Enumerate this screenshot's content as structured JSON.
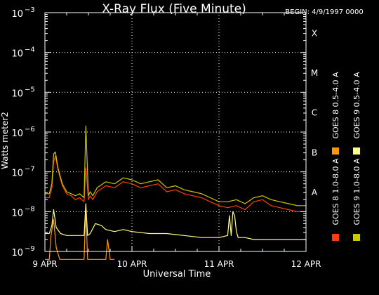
{
  "chart_data": {
    "type": "line",
    "title": "X-Ray Flux (Five Minute)",
    "begin_label": "BEGIN: 4/9/1997 0000",
    "xlabel": "Universal Time",
    "ylabel": "Watts meter2",
    "x_domain_days": [
      9,
      12
    ],
    "x_ticks": [
      {
        "day": 9,
        "label": "9 APR"
      },
      {
        "day": 10,
        "label": "10 APR"
      },
      {
        "day": 11,
        "label": "11 APR"
      },
      {
        "day": 12,
        "label": "12 APR"
      }
    ],
    "ylim_log10": [
      -9,
      -3
    ],
    "y_ticks": [
      {
        "exp": -9,
        "label": "10",
        "sup": "−9"
      },
      {
        "exp": -8,
        "label": "10",
        "sup": "−8"
      },
      {
        "exp": -7,
        "label": "10",
        "sup": "−7"
      },
      {
        "exp": -6,
        "label": "10",
        "sup": "−6"
      },
      {
        "exp": -5,
        "label": "10",
        "sup": "−5"
      },
      {
        "exp": -4,
        "label": "10",
        "sup": "−4"
      },
      {
        "exp": -3,
        "label": "10",
        "sup": "−3"
      }
    ],
    "flare_classes": [
      {
        "label": "A",
        "exp": -8
      },
      {
        "label": "B",
        "exp": -7
      },
      {
        "label": "C",
        "exp": -6
      },
      {
        "label": "M",
        "exp": -5
      },
      {
        "label": "X",
        "exp": -4
      }
    ],
    "grid": "dotted",
    "legend_position": "right",
    "series": [
      {
        "name": "GOES 8 1.0-8.0 A",
        "color": "#ff4000",
        "x": [
          9.0,
          9.05,
          9.08,
          9.1,
          9.12,
          9.15,
          9.2,
          9.25,
          9.3,
          9.35,
          9.4,
          9.45,
          9.47,
          9.5,
          9.52,
          9.55,
          9.6,
          9.7,
          9.8,
          9.9,
          10.0,
          10.1,
          10.2,
          10.3,
          10.4,
          10.5,
          10.6,
          10.7,
          10.8,
          10.9,
          11.0,
          11.1,
          11.2,
          11.3,
          11.4,
          11.5,
          11.6,
          11.7,
          11.8,
          11.9,
          12.0
        ],
        "log10_y": [
          -7.65,
          -7.65,
          -7.4,
          -6.75,
          -6.6,
          -6.95,
          -7.35,
          -7.55,
          -7.6,
          -7.7,
          -7.65,
          -7.75,
          -6.9,
          -7.7,
          -7.6,
          -7.7,
          -7.5,
          -7.35,
          -7.4,
          -7.25,
          -7.3,
          -7.4,
          -7.35,
          -7.3,
          -7.5,
          -7.45,
          -7.55,
          -7.6,
          -7.65,
          -7.75,
          -7.85,
          -7.9,
          -7.85,
          -7.95,
          -7.75,
          -7.7,
          -7.85,
          -7.9,
          -7.95,
          -8.0,
          -8.0
        ]
      },
      {
        "name": "GOES 8 0.5-4.0 A",
        "color": "#ff9600",
        "x": [
          9.0,
          9.05,
          9.07,
          9.1,
          9.13,
          9.17,
          9.2,
          9.25,
          9.3,
          9.35,
          9.45,
          9.47,
          9.49,
          9.52,
          9.6,
          9.7,
          9.72,
          9.75,
          9.8
        ],
        "log10_y": [
          -9.2,
          -9.2,
          -8.6,
          -8.2,
          -8.9,
          -9.2,
          -9.2,
          -9.2,
          -9.2,
          -9.2,
          -9.2,
          -7.9,
          -9.2,
          -9.2,
          -9.2,
          -9.2,
          -8.7,
          -9.2,
          -9.2
        ]
      },
      {
        "name": "GOES 9 1.0-8.0 A",
        "color": "#c8c800",
        "x": [
          9.0,
          9.05,
          9.08,
          9.1,
          9.12,
          9.15,
          9.2,
          9.25,
          9.3,
          9.35,
          9.4,
          9.45,
          9.47,
          9.5,
          9.52,
          9.55,
          9.6,
          9.7,
          9.8,
          9.9,
          10.0,
          10.1,
          10.2,
          10.3,
          10.4,
          10.5,
          10.6,
          10.7,
          10.8,
          10.9,
          11.0,
          11.1,
          11.2,
          11.3,
          11.4,
          11.5,
          11.6,
          11.7,
          11.8,
          11.9,
          12.0
        ],
        "log10_y": [
          -7.55,
          -7.55,
          -7.3,
          -6.55,
          -6.5,
          -6.9,
          -7.3,
          -7.5,
          -7.55,
          -7.6,
          -7.55,
          -7.65,
          -5.85,
          -7.6,
          -7.5,
          -7.6,
          -7.4,
          -7.25,
          -7.3,
          -7.15,
          -7.2,
          -7.3,
          -7.25,
          -7.2,
          -7.4,
          -7.35,
          -7.45,
          -7.5,
          -7.55,
          -7.65,
          -7.75,
          -7.75,
          -7.7,
          -7.8,
          -7.65,
          -7.6,
          -7.7,
          -7.75,
          -7.8,
          -7.85,
          -7.85
        ]
      },
      {
        "name": "GOES 9 0.5-4.0 A",
        "color": "#ffff80",
        "x": [
          9.0,
          9.05,
          9.08,
          9.1,
          9.13,
          9.18,
          9.25,
          9.3,
          9.4,
          9.45,
          9.47,
          9.49,
          9.52,
          9.58,
          9.65,
          9.7,
          9.8,
          9.9,
          10.0,
          10.2,
          10.4,
          10.6,
          10.8,
          11.0,
          11.1,
          11.12,
          11.14,
          11.16,
          11.18,
          11.2,
          11.22,
          11.3,
          11.4,
          11.6,
          11.8,
          12.0
        ],
        "log10_y": [
          -8.55,
          -8.55,
          -8.35,
          -7.95,
          -8.4,
          -8.55,
          -8.6,
          -8.6,
          -8.6,
          -8.6,
          -7.8,
          -8.6,
          -8.55,
          -8.3,
          -8.35,
          -8.45,
          -8.5,
          -8.45,
          -8.5,
          -8.55,
          -8.55,
          -8.6,
          -8.65,
          -8.65,
          -8.6,
          -8.1,
          -8.6,
          -8.0,
          -8.1,
          -8.5,
          -8.65,
          -8.65,
          -8.7,
          -8.7,
          -8.7,
          -8.7
        ]
      }
    ]
  }
}
